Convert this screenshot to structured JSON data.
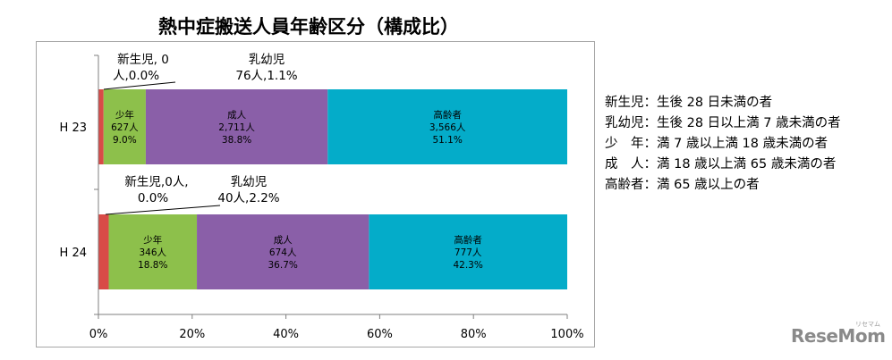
{
  "chart_data": {
    "type": "bar",
    "orientation": "horizontal",
    "stacked": "percent",
    "title": "熱中症搬送人員年齢区分（構成比）",
    "categories": [
      "H23",
      "H24"
    ],
    "category_labels": [
      "H 23",
      "H 24"
    ],
    "xlim": [
      0,
      100
    ],
    "x_ticks": [
      "0%",
      "20%",
      "40%",
      "60%",
      "80%",
      "100%"
    ],
    "series": [
      {
        "name": "新生児",
        "color": "#c0393b",
        "values": [
          0.0,
          0.0
        ],
        "labels": [
          [
            "新生児, 0",
            "人,0.0%"
          ],
          [
            "新生児,0人,",
            "0.0%"
          ]
        ]
      },
      {
        "name": "乳幼児",
        "color": "#d84b47",
        "values": [
          1.1,
          2.2
        ],
        "labels": [
          [
            "乳幼児",
            "76人,1.1%"
          ],
          [
            "乳幼児",
            "40人,2.2%"
          ]
        ]
      },
      {
        "name": "少年",
        "color": "#8dc04b",
        "values": [
          9.0,
          18.8
        ],
        "labels": [
          [
            "少年",
            "627人",
            "9.0%"
          ],
          [
            "少年",
            "346人",
            "18.8%"
          ]
        ]
      },
      {
        "name": "成人",
        "color": "#8a5fa8",
        "values": [
          38.8,
          36.7
        ],
        "labels": [
          [
            "成人",
            "2,711人",
            "38.8%"
          ],
          [
            "成人",
            "674人",
            "36.7%"
          ]
        ]
      },
      {
        "name": "高齢者",
        "color": "#04acc9",
        "values": [
          51.1,
          42.3
        ],
        "labels": [
          [
            "高齢者",
            "3,566人",
            "51.1%"
          ],
          [
            "高齢者",
            "777人",
            "42.3%"
          ]
        ]
      }
    ]
  },
  "notes": [
    "新生児：生後 28 日未満の者",
    "乳幼児：生後 28 日以上満 7 歳未満の者",
    "少　年：満 7 歳以上満 18 歳未満の者",
    "成　人：満 18 歳以上満 65 歳未満の者",
    "高齢者：満 65 歳以上の者"
  ],
  "watermark": "ReseMom",
  "watermark_sub": "リセマム"
}
